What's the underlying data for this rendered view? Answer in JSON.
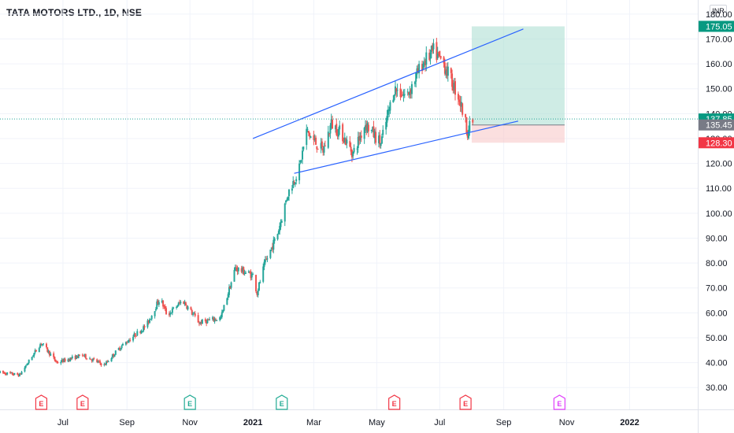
{
  "header": {
    "title": "TATA MOTORS LTD., 1D, NSE",
    "currency": "INR"
  },
  "colors": {
    "up": "#26a69a",
    "down": "#ef5350",
    "trendline": "#2962ff",
    "profit_zone": "#a7dccf",
    "loss_zone": "#f9c9c9",
    "tag_green": "#089981",
    "tag_red": "#f23645",
    "tag_gray": "#787b86",
    "earnings_red": "#f23645",
    "earnings_teal": "#22ab94",
    "earnings_magenta": "#e040fb"
  },
  "chart_data": {
    "type": "candlestick",
    "title": "TATA MOTORS LTD., 1D, NSE",
    "ylim": [
      25,
      185
    ],
    "y_ticks": [
      "30.00",
      "40.00",
      "50.00",
      "60.00",
      "70.00",
      "80.00",
      "90.00",
      "100.00",
      "110.00",
      "120.00",
      "130.00",
      "140.00",
      "150.00",
      "160.00",
      "170.00",
      "180.00"
    ],
    "x_ticks": [
      {
        "label": "Jul",
        "date": "2020-07-01"
      },
      {
        "label": "Sep",
        "date": "2020-09-01"
      },
      {
        "label": "Nov",
        "date": "2020-11-01"
      },
      {
        "label": "2021",
        "date": "2021-01-01",
        "bold": true
      },
      {
        "label": "Mar",
        "date": "2021-03-01"
      },
      {
        "label": "May",
        "date": "2021-05-01"
      },
      {
        "label": "Jul",
        "date": "2021-07-01"
      },
      {
        "label": "Sep",
        "date": "2021-09-01"
      },
      {
        "label": "Nov",
        "date": "2021-11-01"
      },
      {
        "label": "2022",
        "date": "2022-01-01",
        "bold": true
      }
    ],
    "x_range": [
      "2020-05-01",
      "2022-03-08"
    ],
    "price_anchors": [
      {
        "date": "2020-05-01",
        "price": 36
      },
      {
        "date": "2020-05-20",
        "price": 35
      },
      {
        "date": "2020-06-10",
        "price": 48
      },
      {
        "date": "2020-06-25",
        "price": 40
      },
      {
        "date": "2020-07-20",
        "price": 43
      },
      {
        "date": "2020-08-10",
        "price": 39
      },
      {
        "date": "2020-08-25",
        "price": 46
      },
      {
        "date": "2020-09-20",
        "price": 55
      },
      {
        "date": "2020-10-03",
        "price": 66
      },
      {
        "date": "2020-10-10",
        "price": 59
      },
      {
        "date": "2020-10-25",
        "price": 65
      },
      {
        "date": "2020-11-10",
        "price": 56
      },
      {
        "date": "2020-12-01",
        "price": 58
      },
      {
        "date": "2020-12-15",
        "price": 78
      },
      {
        "date": "2021-01-01",
        "price": 75
      },
      {
        "date": "2021-01-05",
        "price": 68
      },
      {
        "date": "2021-01-12",
        "price": 79
      },
      {
        "date": "2021-01-25",
        "price": 92
      },
      {
        "date": "2021-02-04",
        "price": 108
      },
      {
        "date": "2021-02-15",
        "price": 118
      },
      {
        "date": "2021-02-22",
        "price": 133
      },
      {
        "date": "2021-03-01",
        "price": 129
      },
      {
        "date": "2021-03-10",
        "price": 125
      },
      {
        "date": "2021-03-18",
        "price": 136
      },
      {
        "date": "2021-03-28",
        "price": 132
      },
      {
        "date": "2021-04-08",
        "price": 124
      },
      {
        "date": "2021-04-20",
        "price": 136
      },
      {
        "date": "2021-05-05",
        "price": 128
      },
      {
        "date": "2021-05-18",
        "price": 150
      },
      {
        "date": "2021-05-30",
        "price": 147
      },
      {
        "date": "2021-06-14",
        "price": 160
      },
      {
        "date": "2021-06-25",
        "price": 165
      },
      {
        "date": "2021-07-05",
        "price": 160
      },
      {
        "date": "2021-07-20",
        "price": 146
      },
      {
        "date": "2021-07-28",
        "price": 133
      },
      {
        "date": "2021-08-02",
        "price": 137
      }
    ],
    "trendlines": [
      {
        "name": "upper",
        "from": {
          "date": "2021-01-01",
          "price": 130
        },
        "to": {
          "date": "2021-09-20",
          "price": 174
        }
      },
      {
        "name": "lower",
        "from": {
          "date": "2021-02-10",
          "price": 116
        },
        "to": {
          "date": "2021-09-15",
          "price": 137
        }
      }
    ],
    "position": {
      "start_date": "2021-08-01",
      "end_date": "2021-10-30",
      "entry": 135.45,
      "target": 175.05,
      "stop": 128.3
    },
    "price_tags": [
      {
        "value": 175.05,
        "label": "175.05",
        "style": "green"
      },
      {
        "value": 137.85,
        "label": "137.85",
        "style": "green"
      },
      {
        "value": 135.45,
        "label": "135.45",
        "style": "gray"
      },
      {
        "value": 128.3,
        "label": "128.30",
        "style": "red"
      }
    ],
    "current_price": 137.85,
    "events": [
      {
        "date": "2020-06-10",
        "label": "E",
        "color": "red"
      },
      {
        "date": "2020-07-20",
        "label": "E",
        "color": "red"
      },
      {
        "date": "2020-11-01",
        "label": "E",
        "color": "teal"
      },
      {
        "date": "2021-01-29",
        "label": "E",
        "color": "teal"
      },
      {
        "date": "2021-05-18",
        "label": "E",
        "color": "red"
      },
      {
        "date": "2021-07-26",
        "label": "E",
        "color": "red"
      },
      {
        "date": "2021-10-25",
        "label": "E",
        "color": "magenta"
      }
    ]
  }
}
